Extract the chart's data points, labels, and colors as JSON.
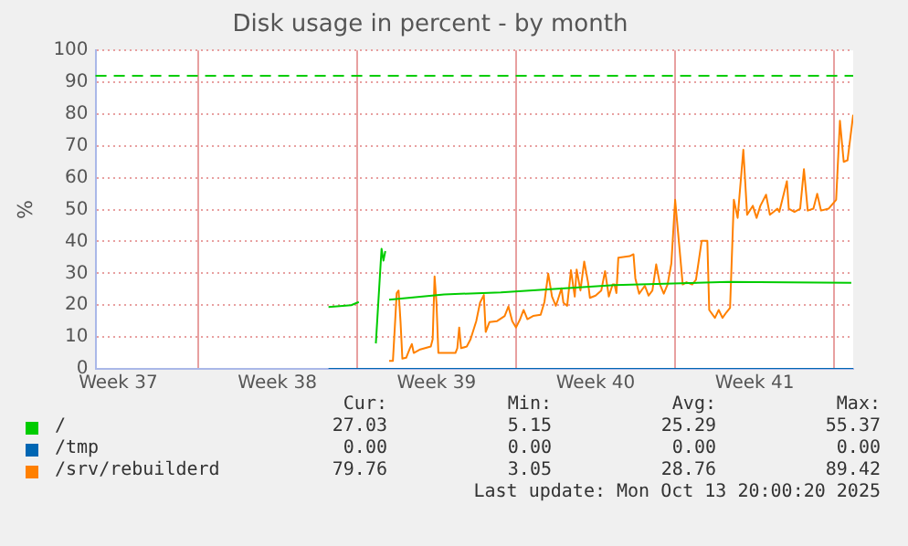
{
  "chart_data": {
    "type": "line",
    "title": "Disk usage in percent - by month",
    "ylabel": "%",
    "xlim": [
      "2025-09-10T12:00",
      "2025-10-13T20:00"
    ],
    "xticks": [
      {
        "value": "2025-09-11T12:00",
        "label": "Week 37"
      },
      {
        "value": "2025-09-15T00:00",
        "label": null
      },
      {
        "value": "2025-09-18T12:00",
        "label": "Week 38"
      },
      {
        "value": "2025-09-22T00:00",
        "label": null
      },
      {
        "value": "2025-09-25T12:00",
        "label": "Week 39"
      },
      {
        "value": "2025-09-29T00:00",
        "label": null
      },
      {
        "value": "2025-10-02T12:00",
        "label": "Week 40"
      },
      {
        "value": "2025-10-06T00:00",
        "label": null
      },
      {
        "value": "2025-10-09T12:00",
        "label": "Week 41"
      },
      {
        "value": "2025-10-13T00:00",
        "label": null
      }
    ],
    "ylim": [
      0,
      100
    ],
    "yticks": [
      0,
      10,
      20,
      30,
      40,
      50,
      60,
      70,
      80,
      90,
      100
    ],
    "grid": true,
    "legend": "bottom",
    "marker": "none",
    "line_style": "solid",
    "ref_lines": [
      {
        "axis": "y",
        "value": 92,
        "color": "#00cc00",
        "line_style": "dashed"
      }
    ],
    "series": [
      {
        "name": "/",
        "color": "#00cc00",
        "x": [
          "2025-09-20T18:00",
          "2025-09-21T18:00",
          "2025-09-22T02:00",
          "2025-09-22T10:00",
          "2025-09-22T20:00",
          "2025-09-23T02:00",
          "2025-09-23T04:00",
          "2025-09-23T06:00",
          "2025-09-23T08:00",
          "2025-09-23T10:00",
          "2025-09-25T20:00",
          "2025-09-28T08:00",
          "2025-10-03T08:00",
          "2025-10-08T08:00",
          "2025-10-13T18:00"
        ],
        "values": [
          19.4,
          20,
          21,
          null,
          8,
          37.7,
          34,
          37,
          null,
          21.7,
          23.4,
          24,
          26.3,
          27.3,
          27
        ]
      },
      {
        "name": "/tmp",
        "color": "#0066b3",
        "x": [
          "2025-09-20T18:00",
          "2025-10-13T20:00"
        ],
        "values": [
          0,
          0
        ]
      },
      {
        "name": "/srv/rebuilderd",
        "color": "#ff8000",
        "x": [
          "2025-09-23T10:00",
          "2025-09-23T14:00",
          "2025-09-23T16:00",
          "2025-09-23T18:00",
          "2025-09-23T20:00",
          "2025-09-23T22:00",
          "2025-09-24T00:00",
          "2025-09-24T04:00",
          "2025-09-24T08:00",
          "2025-09-24T10:00",
          "2025-09-24T12:00",
          "2025-09-24T18:00",
          "2025-09-25T00:00",
          "2025-09-25T06:00",
          "2025-09-25T08:00",
          "2025-09-25T10:00",
          "2025-09-25T12:00",
          "2025-09-25T14:00",
          "2025-09-26T08:00",
          "2025-09-26T10:00",
          "2025-09-26T12:00",
          "2025-09-26T14:00",
          "2025-09-26T20:00",
          "2025-09-27T00:00",
          "2025-09-27T06:00",
          "2025-09-27T10:00",
          "2025-09-27T14:00",
          "2025-09-27T16:00",
          "2025-09-27T20:00",
          "2025-09-28T04:00",
          "2025-09-28T12:00",
          "2025-09-28T16:00",
          "2025-09-28T20:00",
          "2025-09-29T00:00",
          "2025-09-29T04:00",
          "2025-09-29T08:00",
          "2025-09-29T12:00",
          "2025-09-29T18:00",
          "2025-09-30T02:00",
          "2025-09-30T06:00",
          "2025-09-30T10:00",
          "2025-09-30T14:00",
          "2025-09-30T18:00",
          "2025-09-30T20:00",
          "2025-10-01T00:00",
          "2025-10-01T02:00",
          "2025-10-01T06:00",
          "2025-10-01T10:00",
          "2025-10-01T14:00",
          "2025-10-01T16:00",
          "2025-10-01T20:00",
          "2025-10-02T00:00",
          "2025-10-02T04:00",
          "2025-10-02T06:00",
          "2025-10-02T12:00",
          "2025-10-02T18:00",
          "2025-10-02T22:00",
          "2025-10-03T02:00",
          "2025-10-03T06:00",
          "2025-10-03T08:00",
          "2025-10-03T10:00",
          "2025-10-03T12:00",
          "2025-10-04T00:00",
          "2025-10-04T04:00",
          "2025-10-04T06:00",
          "2025-10-04T10:00",
          "2025-10-04T16:00",
          "2025-10-04T20:00",
          "2025-10-05T00:00",
          "2025-10-05T04:00",
          "2025-10-05T08:00",
          "2025-10-05T12:00",
          "2025-10-05T16:00",
          "2025-10-05T20:00",
          "2025-10-06T00:00",
          "2025-10-06T04:00",
          "2025-10-06T08:00",
          "2025-10-06T12:00",
          "2025-10-06T18:00",
          "2025-10-06T22:00",
          "2025-10-07T04:00",
          "2025-10-07T10:00",
          "2025-10-07T12:00",
          "2025-10-07T18:00",
          "2025-10-07T22:00",
          "2025-10-08T02:00",
          "2025-10-08T06:00",
          "2025-10-08T10:00",
          "2025-10-08T14:00",
          "2025-10-08T18:00",
          "2025-10-09T00:00",
          "2025-10-09T04:00",
          "2025-10-09T10:00",
          "2025-10-09T14:00",
          "2025-10-09T18:00",
          "2025-10-10T00:00",
          "2025-10-10T04:00",
          "2025-10-10T08:00",
          "2025-10-10T12:00",
          "2025-10-10T14:00",
          "2025-10-10T22:00",
          "2025-10-11T00:00",
          "2025-10-11T06:00",
          "2025-10-11T12:00",
          "2025-10-11T16:00",
          "2025-10-11T20:00",
          "2025-10-12T02:00",
          "2025-10-12T06:00",
          "2025-10-12T10:00",
          "2025-10-12T18:00",
          "2025-10-13T02:00",
          "2025-10-13T06:00",
          "2025-10-13T10:00",
          "2025-10-13T14:00",
          "2025-10-13T20:00"
        ],
        "values": [
          2.5,
          2.5,
          13,
          23.8,
          24.6,
          15,
          3.2,
          3.5,
          6.5,
          7.8,
          5,
          6,
          6.5,
          7,
          9.3,
          29,
          20.8,
          5,
          5,
          6.5,
          13,
          6.5,
          7,
          9.3,
          15,
          20.8,
          23.2,
          11.6,
          14.7,
          15,
          16.6,
          19.6,
          15,
          13,
          15.4,
          18.5,
          15.6,
          16.6,
          17,
          21,
          29.9,
          22.7,
          19.8,
          21.5,
          25.3,
          20.8,
          19.8,
          31,
          22.7,
          31.2,
          24.6,
          33.7,
          27.2,
          22.3,
          23,
          24.6,
          30.7,
          22.7,
          26.5,
          26.5,
          23.8,
          34.9,
          35.4,
          36,
          28.4,
          23.6,
          26.1,
          23,
          24.6,
          32.8,
          26.5,
          23.6,
          26.5,
          33.1,
          53.1,
          39.8,
          26.5,
          27.2,
          26.5,
          28,
          40.2,
          40.2,
          18.5,
          16,
          18.5,
          16,
          17.7,
          19.2,
          53.1,
          47.4,
          68.8,
          48.4,
          51.2,
          47.4,
          51.2,
          54.7,
          48.4,
          49.3,
          50.3,
          49.3,
          58.9,
          50.3,
          49.3,
          50.3,
          62.7,
          49.7,
          50.3,
          55,
          49.7,
          50.3,
          53.1,
          77.9,
          65,
          65.5,
          79.8
        ]
      }
    ],
    "annotations": [
      "Cur:",
      "Min:",
      "Avg:",
      "Max:",
      "27.03",
      "5.15",
      "25.29",
      "55.37",
      "0.00",
      "0.00",
      "0.00",
      "0.00",
      "79.76",
      "3.05",
      "28.76",
      "89.42",
      "Last update: Mon Oct 13 20:00:20 2025"
    ]
  }
}
